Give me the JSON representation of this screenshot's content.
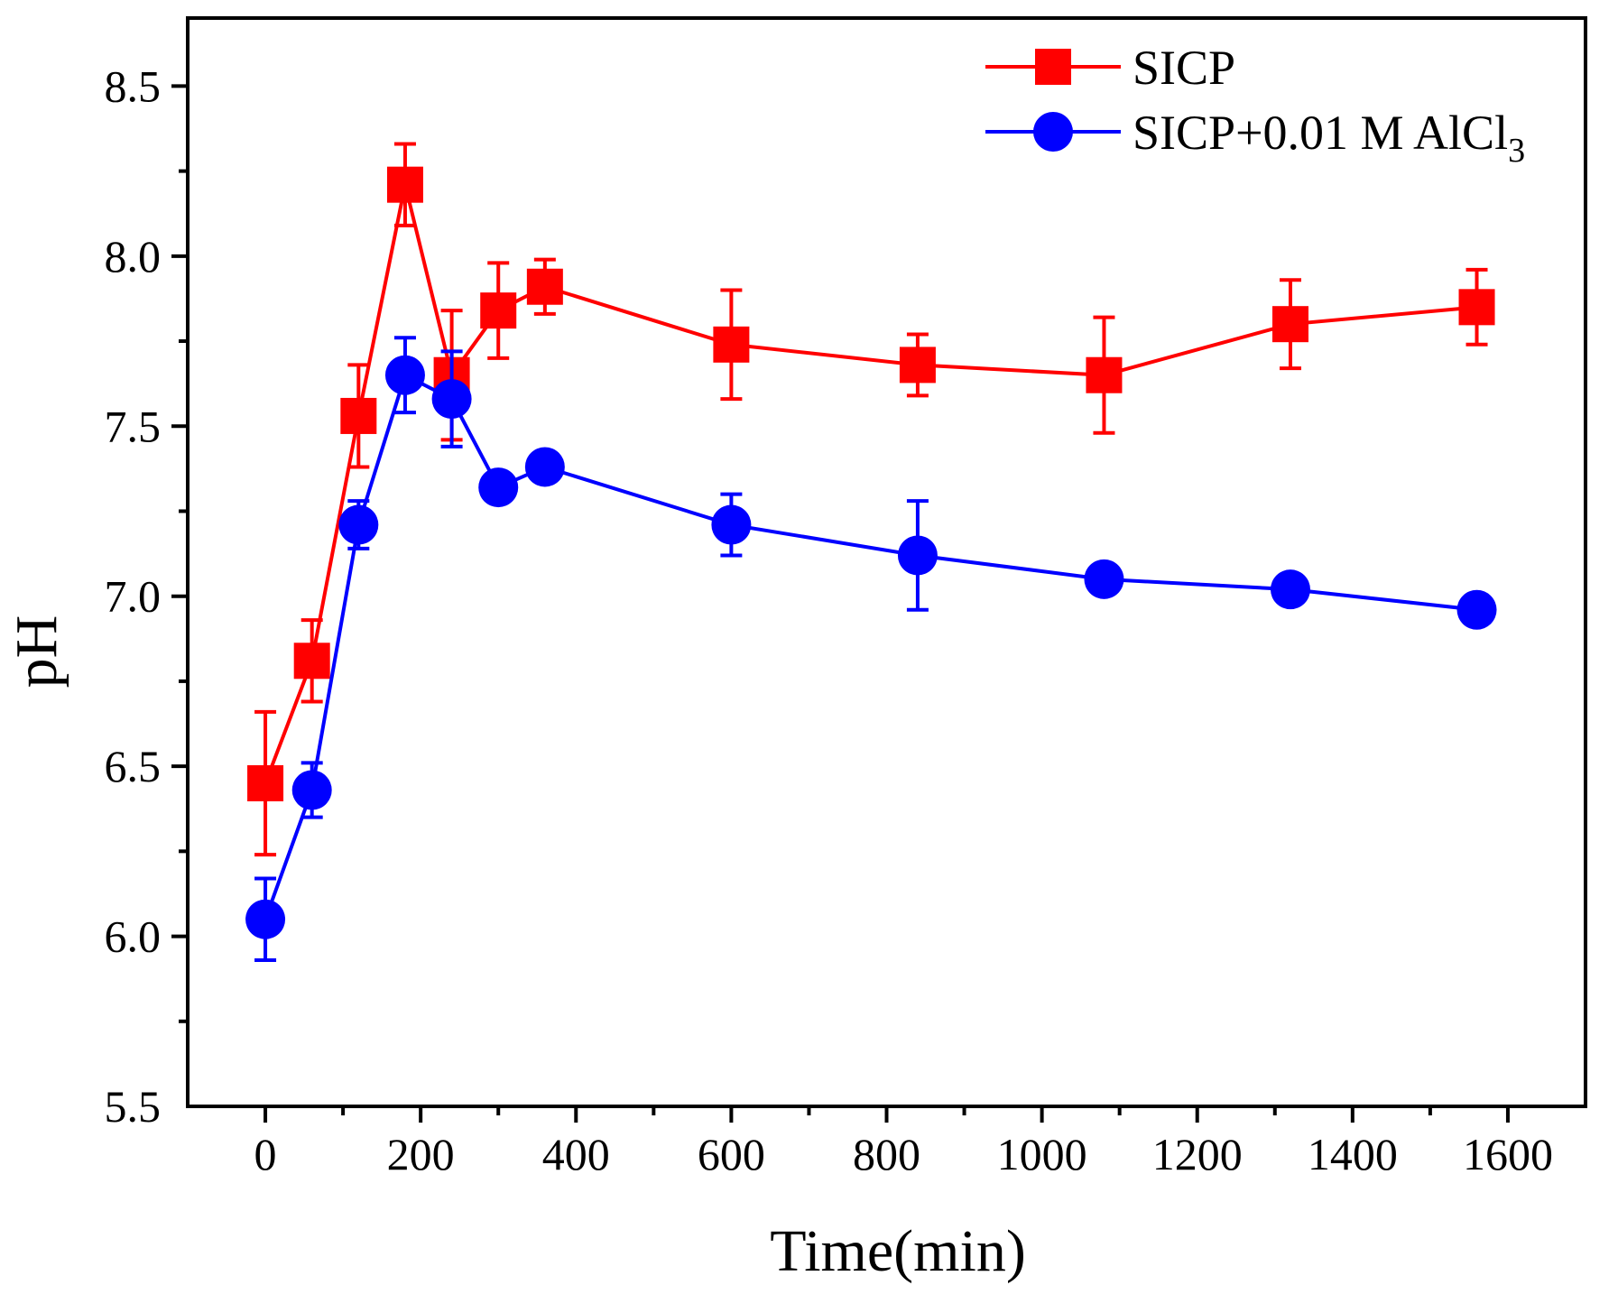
{
  "chart_data": {
    "type": "line",
    "title": "",
    "xlabel": "Time(min)",
    "ylabel": "pH",
    "xlim": [
      -100,
      1700
    ],
    "ylim": [
      5.5,
      8.7
    ],
    "xticks": [
      0,
      200,
      400,
      600,
      800,
      1000,
      1200,
      1400,
      1600
    ],
    "xtick_labels": [
      "0",
      "200",
      "400",
      "600",
      "800",
      "1000",
      "1200",
      "1400",
      "1600"
    ],
    "yticks": [
      5.5,
      6.0,
      6.5,
      7.0,
      7.5,
      8.0,
      8.5
    ],
    "ytick_labels": [
      "5.5",
      "6.0",
      "6.5",
      "7.0",
      "7.5",
      "8.0",
      "8.5"
    ],
    "grid": false,
    "legend_position": "top-right",
    "series": [
      {
        "name": "SICP",
        "legend_parts": [
          "SICP"
        ],
        "color": "#ff0000",
        "marker": "square",
        "x": [
          0,
          60,
          120,
          180,
          240,
          300,
          360,
          600,
          840,
          1080,
          1320,
          1560
        ],
        "y": [
          6.45,
          6.81,
          7.53,
          8.21,
          7.65,
          7.84,
          7.91,
          7.74,
          7.68,
          7.65,
          7.8,
          7.85
        ],
        "err": [
          0.21,
          0.12,
          0.15,
          0.12,
          0.19,
          0.14,
          0.08,
          0.16,
          0.09,
          0.17,
          0.13,
          0.11
        ]
      },
      {
        "name": "SICP+0.01 M AlCl3",
        "legend_parts": [
          "SICP+0.01 M AlCl",
          "3"
        ],
        "color": "#0000ff",
        "marker": "circle",
        "x": [
          0,
          60,
          120,
          180,
          240,
          300,
          360,
          600,
          840,
          1080,
          1320,
          1560
        ],
        "y": [
          6.05,
          6.43,
          7.21,
          7.65,
          7.58,
          7.32,
          7.38,
          7.21,
          7.12,
          7.05,
          7.02,
          6.96
        ],
        "err": [
          0.12,
          0.08,
          0.07,
          0.11,
          0.14,
          0.04,
          0.03,
          0.09,
          0.16,
          0.02,
          0.02,
          0.03
        ]
      }
    ]
  }
}
